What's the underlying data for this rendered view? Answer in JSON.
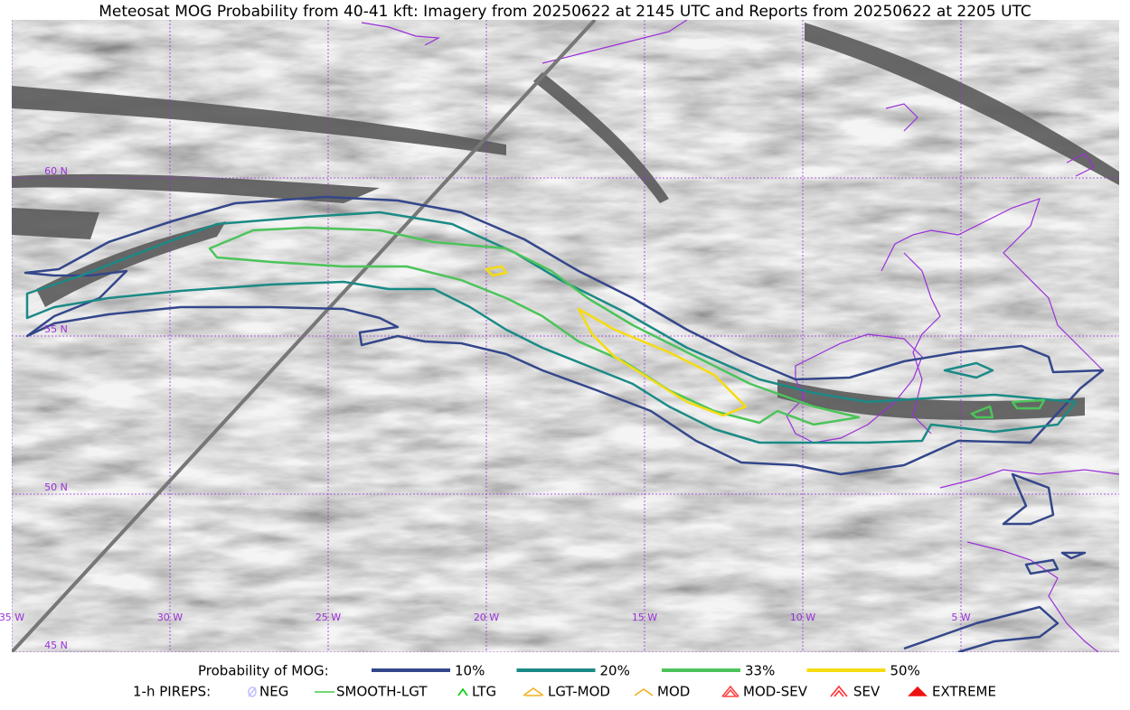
{
  "title": "Meteosat MOG Probability from 40-41 kft: Imagery from 20250622 at 2145 UTC and Reports from 20250622 at 2205 UTC",
  "lat_labels": [
    "60 N",
    "55 N",
    "50 N",
    "45 N"
  ],
  "lon_labels": [
    "35 W",
    "30 W",
    "25 W",
    "20 W",
    "15 W",
    "10 W",
    "5 W"
  ],
  "probability_legend": {
    "label": "Probability of MOG:",
    "items": [
      {
        "name": "10%",
        "color": "#34478b"
      },
      {
        "name": "20%",
        "color": "#1b8a86"
      },
      {
        "name": "33%",
        "color": "#4cc45a"
      },
      {
        "name": "50%",
        "color": "#f5dc10"
      }
    ]
  },
  "pirep_legend": {
    "label": "1-h PIREPS:",
    "items": [
      {
        "name": "NEG",
        "color": "#c0c0ff"
      },
      {
        "name": "SMOOTH-LGT",
        "color": "#44cc44"
      },
      {
        "name": "LTG",
        "color": "#00cc00"
      },
      {
        "name": "LGT-MOD",
        "color": "#f0b020"
      },
      {
        "name": "MOD",
        "color": "#f0b020"
      },
      {
        "name": "MOD-SEV",
        "color": "#ff4444"
      },
      {
        "name": "SEV",
        "color": "#ff3030"
      },
      {
        "name": "EXTREME",
        "color": "#ee1111"
      }
    ]
  }
}
